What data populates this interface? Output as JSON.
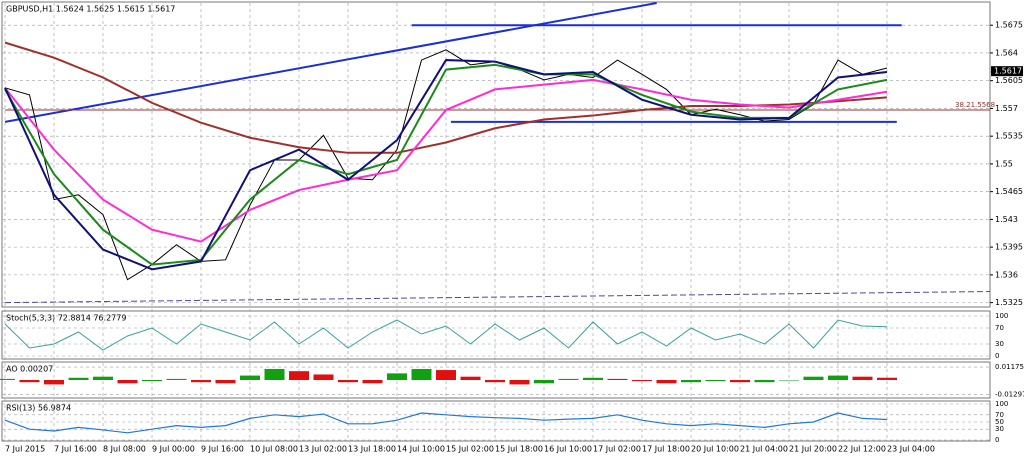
{
  "chart_data": {
    "type": "candlestick-ui",
    "title": "GBPUSD,H1 1.5624 1.5625 1.5615 1.5617",
    "current_price": 1.5617,
    "current_price_label": "1.5617",
    "categories": [
      "7 Jul 2015",
      "7 Jul 16:00",
      "8 Jul 08:00",
      "9 Jul 00:00",
      "9 Jul 16:00",
      "10 Jul 08:00",
      "13 Jul 02:00",
      "13 Jul 18:00",
      "14 Jul 10:00",
      "15 Jul 02:00",
      "15 Jul 18:00",
      "16 Jul 10:00",
      "17 Jul 02:00",
      "17 Jul 18:00",
      "20 Jul 10:00",
      "21 Jul 04:00",
      "21 Jul 20:00",
      "22 Jul 12:00",
      "23 Jul 04:00"
    ],
    "ylim": [
      1.5322,
      1.5703
    ],
    "yticks": [
      1.5675,
      1.564,
      1.5605,
      1.557,
      1.5535,
      1.55,
      1.5465,
      1.543,
      1.5395,
      1.536,
      1.5325
    ],
    "grid": true,
    "price": {
      "color": "#000000",
      "values": [
        1.5596,
        1.5587,
        1.5455,
        1.5461,
        1.5436,
        1.5354,
        1.5373,
        1.5398,
        1.5377,
        1.5379,
        1.5448,
        1.5505,
        1.5505,
        1.5536,
        1.5482,
        1.548,
        1.5518,
        1.5631,
        1.5644,
        1.5625,
        1.5629,
        1.5619,
        1.5606,
        1.5613,
        1.5609,
        1.5631,
        1.5613,
        1.5594,
        1.5562,
        1.5569,
        1.5562,
        1.5554,
        1.5556,
        1.5575,
        1.5631,
        1.5613,
        1.5621
      ]
    },
    "series": [
      {
        "color": "#a0302a",
        "values": [
          1.5653,
          1.5634,
          1.5609,
          1.5577,
          1.5552,
          1.5533,
          1.5521,
          1.5514,
          1.5514,
          1.5527,
          1.5545,
          1.5556,
          1.5561,
          1.5568,
          1.5573,
          1.5573,
          1.5575,
          1.5579,
          1.5584
        ]
      },
      {
        "color": "#ff2bd6",
        "values": [
          1.5596,
          1.5518,
          1.5455,
          1.5417,
          1.5402,
          1.5442,
          1.5467,
          1.548,
          1.5492,
          1.5568,
          1.5594,
          1.56,
          1.5606,
          1.5594,
          1.5581,
          1.5575,
          1.5571,
          1.5581,
          1.5591
        ]
      },
      {
        "color": "#1a8a1a",
        "values": [
          1.5594,
          1.5487,
          1.5417,
          1.5373,
          1.5379,
          1.5455,
          1.5505,
          1.5487,
          1.5505,
          1.5619,
          1.5625,
          1.5613,
          1.5613,
          1.5587,
          1.5566,
          1.5558,
          1.5558,
          1.5594,
          1.5606
        ]
      },
      {
        "color": "#10107a",
        "values": [
          1.5596,
          1.5461,
          1.5392,
          1.5367,
          1.5377,
          1.5492,
          1.5518,
          1.548,
          1.553,
          1.5631,
          1.5629,
          1.5613,
          1.5616,
          1.5581,
          1.5562,
          1.5556,
          1.5558,
          1.5609,
          1.5616
        ]
      }
    ],
    "levels": [
      {
        "color": "#1a2fd6",
        "values": [
          1.5675,
          1.5675
        ],
        "x": [
          8.3,
          18.3
        ]
      },
      {
        "color": "#1a2fd6",
        "values": [
          1.5553,
          1.5553
        ],
        "x": [
          9.1,
          18.2
        ]
      },
      {
        "color": "#1a2fd6",
        "values": [
          1.5553,
          1.5703
        ],
        "x": [
          0,
          13.3
        ]
      },
      {
        "color": "#a0302a",
        "values": [
          1.5568,
          1.5568
        ],
        "x": [
          0,
          20.1
        ]
      },
      {
        "color": "#4a4aa0",
        "values": [
          1.5325,
          1.5339
        ],
        "x": [
          0,
          20.1
        ],
        "dashed": true
      }
    ],
    "fib_label": "38.21.5568",
    "stoch": {
      "title": "Stoch(5,3,3) 72.8814 76.2779",
      "ylim": [
        0,
        100
      ],
      "yticks": [
        100,
        70,
        30,
        0
      ],
      "color": "#3aa0a0",
      "values": [
        80,
        20,
        30,
        60,
        15,
        50,
        70,
        30,
        80,
        60,
        40,
        85,
        30,
        70,
        20,
        60,
        90,
        55,
        75,
        30,
        80,
        40,
        70,
        20,
        85,
        30,
        60,
        25,
        70,
        40,
        55,
        30,
        80,
        20,
        90,
        75,
        73
      ]
    },
    "ao": {
      "title": "AO 0.00207",
      "ylim": [
        -0.0145,
        0.0145
      ],
      "yticks": [
        0.01175,
        -0.01297
      ],
      "colors": [
        "#10a010",
        "#e01010"
      ],
      "values": [
        0.001,
        -0.002,
        -0.004,
        0.002,
        0.003,
        -0.003,
        -0.001,
        0.001,
        -0.002,
        -0.003,
        0.004,
        0.01,
        0.008,
        0.005,
        -0.002,
        -0.003,
        0.006,
        0.01,
        0.009,
        0.003,
        -0.002,
        -0.004,
        -0.003,
        0.001,
        0.002,
        0.001,
        -0.001,
        -0.003,
        -0.002,
        -0.001,
        -0.002,
        -0.002,
        0,
        0.003,
        0.004,
        0.003,
        0.00207
      ]
    },
    "rsi": {
      "title": "RSI(13) 56.9874",
      "ylim": [
        0,
        100
      ],
      "yticks": [
        100,
        70,
        50,
        30,
        0
      ],
      "color": "#1e78e0",
      "values": [
        55,
        30,
        25,
        35,
        28,
        20,
        30,
        40,
        35,
        40,
        60,
        70,
        65,
        72,
        45,
        45,
        55,
        75,
        70,
        65,
        62,
        60,
        55,
        58,
        60,
        70,
        55,
        45,
        40,
        45,
        40,
        35,
        45,
        50,
        75,
        60,
        57
      ]
    }
  }
}
